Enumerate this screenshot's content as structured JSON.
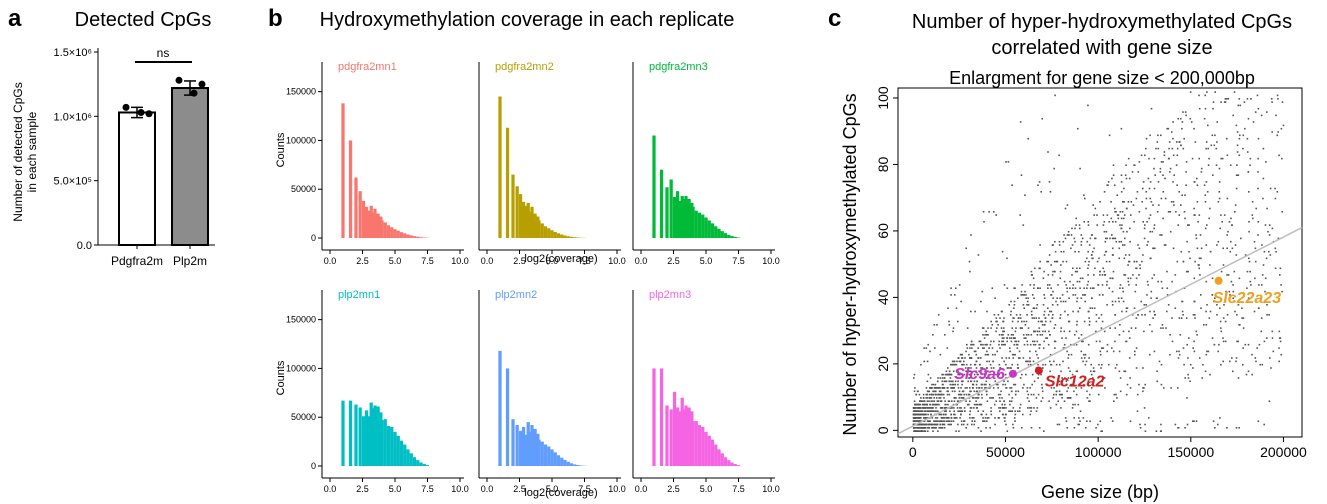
{
  "panels": {
    "a": {
      "letter": "a",
      "title": "Detected CpGs"
    },
    "b": {
      "letter": "b",
      "title": "Hydroxymethylation coverage in each replicate"
    },
    "c": {
      "letter": "c",
      "title_line1": "Number of hyper-hydroxymethylated CpGs",
      "title_line2": "correlated with gene size",
      "subtitle": "Enlargment for gene size < 200,000bp"
    }
  },
  "colors": {
    "pdgfra2mn1": "#F8766D",
    "pdgfra2mn2": "#B79F00",
    "pdgfra2mn3": "#00BA38",
    "plp2mn1": "#00BFC4",
    "plp2mn2": "#619CFF",
    "plp2mn3": "#F564E3",
    "bar_pdgfra2m": "#ffffff",
    "bar_plp2m": "#8c8c8c",
    "slc9a6": "#CC33CC",
    "slc12a2": "#D02020",
    "slc22a23": "#F0A020",
    "scatter_points": "#555555",
    "fit_line": "#bdbdbd"
  },
  "chart_data": [
    {
      "type": "bar",
      "title": "Detected CpGs",
      "ylabel": "Number of detected CpGs in each sample",
      "yticks": [
        "0.0",
        "5.0×10⁵",
        "1.0×10⁶",
        "1.5×10⁶"
      ],
      "ylim": [
        0,
        1500000
      ],
      "categories": [
        "Pdgfra2m",
        "Plp2m"
      ],
      "values": [
        1030000,
        1220000
      ],
      "errors": [
        40000,
        55000
      ],
      "points": [
        [
          1070000,
          1030000,
          1020000
        ],
        [
          1280000,
          1180000,
          1250000
        ]
      ],
      "annotation": "ns"
    },
    {
      "type": "bar",
      "title": "Hydroxymethylation coverage in each replicate",
      "xlabel": "log2(coverage)",
      "ylabel": "Counts",
      "xticks": [
        "0.0",
        "2.5",
        "5.0",
        "7.5",
        "10.0"
      ],
      "yticks": [
        "0",
        "50000",
        "100000",
        "150000"
      ],
      "xlim": [
        0,
        10
      ],
      "ylim": [
        0,
        190000
      ],
      "bin_width": 0.25,
      "series": [
        {
          "name": "pdgfra2mn1",
          "x": [
            1.0,
            1.58,
            2.0,
            2.32,
            2.58,
            2.81,
            3.0,
            3.17,
            3.32,
            3.46,
            3.58,
            3.7,
            3.81,
            3.91,
            4.0,
            4.25,
            4.5,
            4.75,
            5.0,
            5.25,
            5.5,
            5.75,
            6.0,
            6.25,
            6.5,
            6.75,
            7.0,
            7.25,
            7.5
          ],
          "values": [
            138000,
            100000,
            62000,
            48000,
            38000,
            32000,
            28000,
            33000,
            26000,
            30000,
            22000,
            25000,
            20000,
            22000,
            18000,
            16000,
            13000,
            11000,
            9000,
            7500,
            6000,
            4800,
            3600,
            2700,
            1900,
            1300,
            800,
            500,
            300
          ]
        },
        {
          "name": "pdgfra2mn2",
          "x": [
            1.0,
            1.58,
            2.0,
            2.32,
            2.58,
            2.81,
            3.0,
            3.17,
            3.32,
            3.46,
            3.58,
            3.7,
            3.81,
            3.91,
            4.0,
            4.25,
            4.5,
            4.75,
            5.0,
            5.25,
            5.5,
            5.75,
            6.0,
            6.25,
            6.5,
            6.75,
            7.0,
            7.25,
            7.5
          ],
          "values": [
            145000,
            113000,
            65000,
            53000,
            45000,
            37000,
            33000,
            36000,
            27000,
            32000,
            22000,
            25000,
            20000,
            22000,
            18000,
            15000,
            12000,
            10000,
            8000,
            6200,
            4800,
            3600,
            2600,
            1800,
            1200,
            800,
            500,
            300,
            200
          ]
        },
        {
          "name": "pdgfra2mn3",
          "x": [
            1.0,
            1.58,
            2.0,
            2.32,
            2.58,
            2.81,
            3.0,
            3.17,
            3.32,
            3.46,
            3.58,
            3.7,
            3.81,
            3.91,
            4.0,
            4.25,
            4.5,
            4.75,
            5.0,
            5.25,
            5.5,
            5.75,
            6.0,
            6.25,
            6.5,
            6.75,
            7.0,
            7.25,
            7.5
          ],
          "values": [
            105000,
            70000,
            52000,
            60000,
            42000,
            48000,
            38000,
            43000,
            40000,
            43000,
            37000,
            40000,
            34000,
            36000,
            32000,
            28000,
            26000,
            24000,
            21000,
            18000,
            15000,
            12000,
            9500,
            7000,
            5000,
            3200,
            2000,
            1100,
            500
          ]
        },
        {
          "name": "plp2mn1",
          "x": [
            1.0,
            1.58,
            2.0,
            2.32,
            2.58,
            2.81,
            3.0,
            3.17,
            3.32,
            3.46,
            3.58,
            3.7,
            3.81,
            3.91,
            4.0,
            4.25,
            4.5,
            4.75,
            5.0,
            5.25,
            5.5,
            5.75,
            6.0,
            6.25,
            6.5,
            6.75,
            7.0,
            7.25,
            7.5
          ],
          "values": [
            67000,
            67000,
            63000,
            60000,
            51000,
            57000,
            51000,
            65000,
            59000,
            62000,
            56000,
            61000,
            50000,
            55000,
            47000,
            48000,
            41000,
            40000,
            35000,
            31000,
            26000,
            22000,
            17000,
            13000,
            9000,
            6000,
            3600,
            2000,
            900
          ]
        },
        {
          "name": "plp2mn2",
          "x": [
            1.0,
            1.58,
            2.0,
            2.32,
            2.58,
            2.81,
            3.0,
            3.17,
            3.32,
            3.46,
            3.58,
            3.7,
            3.81,
            3.91,
            4.0,
            4.25,
            4.5,
            4.75,
            5.0,
            5.25,
            5.5,
            5.75,
            6.0,
            6.25,
            6.5,
            6.75,
            7.0,
            7.25,
            7.5
          ],
          "values": [
            118000,
            100000,
            48000,
            42000,
            36000,
            40000,
            32000,
            45000,
            35000,
            42000,
            31000,
            38000,
            29000,
            33000,
            27000,
            25000,
            22000,
            20000,
            17000,
            14000,
            11000,
            8500,
            6200,
            4300,
            2800,
            1700,
            1000,
            500,
            250
          ]
        },
        {
          "name": "plp2mn3",
          "x": [
            1.0,
            1.58,
            2.0,
            2.32,
            2.58,
            2.81,
            3.0,
            3.17,
            3.32,
            3.46,
            3.58,
            3.7,
            3.81,
            3.91,
            4.0,
            4.25,
            4.5,
            4.75,
            5.0,
            5.25,
            5.5,
            5.75,
            6.0,
            6.25,
            6.5,
            6.75,
            7.0,
            7.25,
            7.5
          ],
          "values": [
            100000,
            100000,
            62000,
            58000,
            76000,
            60000,
            56000,
            70000,
            58000,
            62000,
            52000,
            60000,
            49000,
            56000,
            46000,
            46000,
            42000,
            40000,
            35000,
            31000,
            27000,
            22000,
            17000,
            13000,
            9000,
            6000,
            3500,
            2000,
            900
          ]
        }
      ]
    },
    {
      "type": "scatter",
      "title": "Number of hyper-hydroxymethylated CpGs correlated with gene size",
      "xlabel": "Gene size (bp)",
      "ylabel": "Number of hyper-hydroxymethylated CpGs",
      "xticks": [
        "0",
        "50000",
        "100000",
        "150000",
        "200000"
      ],
      "yticks": [
        "0",
        "20",
        "40",
        "60",
        "80",
        "100"
      ],
      "xlim": [
        -8000,
        210000
      ],
      "ylim": [
        -2,
        103
      ],
      "fit_line": {
        "x": [
          -8000,
          210000
        ],
        "y": [
          -1,
          61
        ]
      },
      "grid": false,
      "highlighted": [
        {
          "label": "Slc9a6",
          "x": 54000,
          "y": 17,
          "label_side": "left"
        },
        {
          "label": "Slc12a2",
          "x": 68000,
          "y": 18,
          "label_side": "right-below"
        },
        {
          "label": "Slc22a23",
          "x": 165000,
          "y": 45,
          "label_side": "below"
        }
      ],
      "background_points": "several thousand gene points; density highest at small gene size and low counts"
    }
  ]
}
